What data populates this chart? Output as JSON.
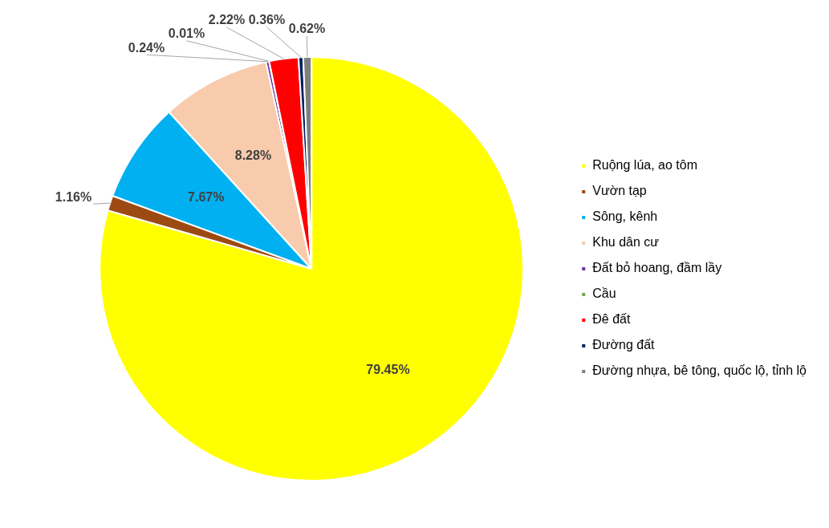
{
  "chart_data": {
    "type": "pie",
    "categories": [
      "Ruộng lúa, ao tôm",
      "Vườn tạp",
      "Sông, kênh",
      "Khu dân cư",
      "Đất bỏ hoang, đầm lầy",
      "Cầu",
      "Đê đất",
      "Đường đất",
      "Đường nhựa, bê tông, quốc lộ, tỉnh lộ"
    ],
    "values": [
      79.45,
      1.16,
      7.67,
      8.28,
      0.24,
      0.01,
      2.22,
      0.36,
      0.62
    ],
    "colors": [
      "#ffff00",
      "#9c4a12",
      "#00b0f0",
      "#f8cbad",
      "#7030a0",
      "#70ad47",
      "#ff0000",
      "#002060",
      "#7f7f7f"
    ],
    "value_labels": [
      "79.45%",
      "1.16%",
      "7.67%",
      "8.28%",
      "0.24%",
      "0.01%",
      "2.22%",
      "0.36%",
      "0.62%"
    ],
    "legend": "right"
  }
}
